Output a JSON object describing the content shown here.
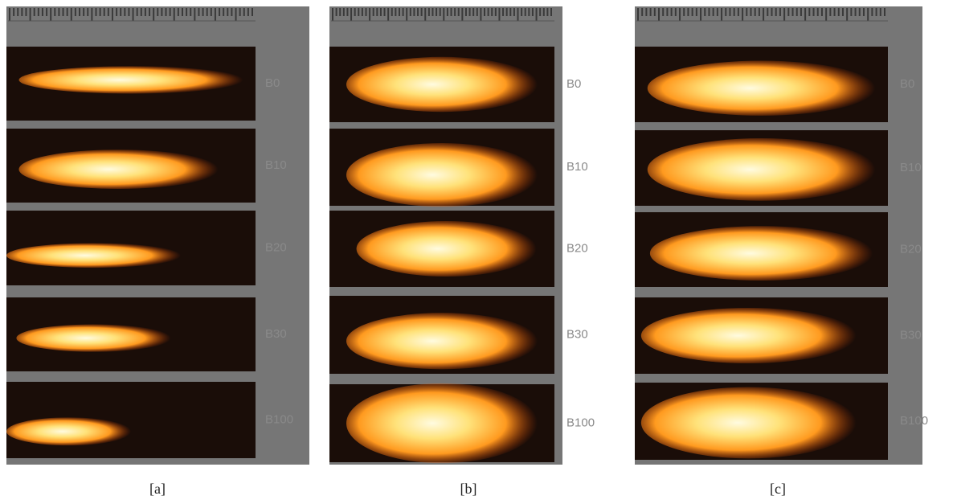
{
  "panels": [
    {
      "caption": "[a]",
      "rows": [
        {
          "label": "B0"
        },
        {
          "label": "B10"
        },
        {
          "label": "B20"
        },
        {
          "label": "B30"
        },
        {
          "label": "B100"
        }
      ]
    },
    {
      "caption": "[b]",
      "rows": [
        {
          "label": "B0"
        },
        {
          "label": "B10"
        },
        {
          "label": "B20"
        },
        {
          "label": "B30"
        },
        {
          "label": "B100"
        }
      ]
    },
    {
      "caption": "[c]",
      "rows": [
        {
          "label": "B0"
        },
        {
          "label": "B10"
        },
        {
          "label": "B20"
        },
        {
          "label": "B30"
        },
        {
          "label": "B100"
        }
      ]
    }
  ]
}
